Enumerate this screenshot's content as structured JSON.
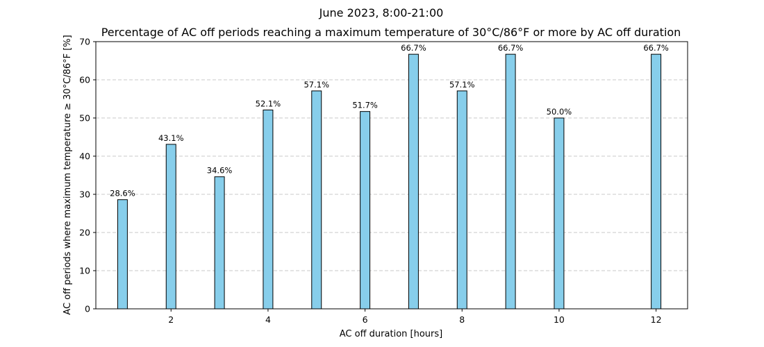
{
  "chart_data": {
    "type": "bar",
    "suptitle": "June 2023, 8:00-21:00",
    "title": "Percentage of AC off periods reaching a maximum temperature of 30°C/86°F or more by AC off duration",
    "xlabel": "AC off duration [hours]",
    "ylabel": "AC off periods where maximum temperature ≥ 30°C/86°F [%]",
    "xlim": [
      0.45,
      12.65
    ],
    "ylim": [
      0,
      70
    ],
    "xticks": [
      2,
      4,
      6,
      8,
      10,
      12
    ],
    "yticks": [
      0,
      10,
      20,
      30,
      40,
      50,
      60,
      70
    ],
    "grid": "y-dashed",
    "bar_width": 0.2,
    "bar_color": "#87ceeb",
    "edge_color": "#000000",
    "x": [
      1,
      2,
      3,
      4,
      5,
      6,
      7,
      8,
      9,
      10,
      12
    ],
    "values": [
      28.6,
      43.1,
      34.6,
      52.1,
      57.1,
      51.7,
      66.7,
      57.1,
      66.7,
      50.0,
      66.7
    ],
    "labels": [
      "28.6%",
      "43.1%",
      "34.6%",
      "52.1%",
      "57.1%",
      "51.7%",
      "66.7%",
      "57.1%",
      "66.7%",
      "50.0%",
      "66.7%"
    ]
  }
}
